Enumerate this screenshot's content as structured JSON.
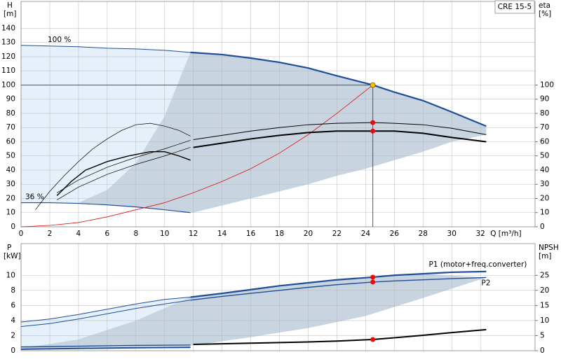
{
  "chart_data": [
    {
      "type": "line",
      "product": "CRE 15-5",
      "y_label": "H",
      "y_unit": "[m]",
      "y2_label": "eta",
      "y2_unit": "[%]",
      "x_label": "Q [m³/h]",
      "xlim": [
        0,
        35.8
      ],
      "xticks": [
        0,
        2,
        4,
        6,
        8,
        10,
        12,
        14,
        16,
        18,
        20,
        22,
        24,
        26,
        28,
        30,
        32
      ],
      "ylim": [
        0,
        159
      ],
      "yticks": [
        0,
        10,
        20,
        30,
        40,
        50,
        60,
        70,
        80,
        90,
        100,
        110,
        120,
        130,
        140
      ],
      "y2lim": [
        0,
        159
      ],
      "y2ticks": [
        0,
        10,
        20,
        30,
        40,
        50,
        60,
        70,
        80,
        90,
        100
      ],
      "grid": true,
      "crosshair": {
        "x": 24.5,
        "y": 100
      },
      "regions": [
        {
          "color": "#e6f0fa",
          "x": [
            0,
            2,
            4,
            6,
            8,
            10,
            11.8,
            11.8,
            10,
            8,
            6,
            4,
            2,
            0
          ],
          "values": [
            128,
            127.5,
            127,
            126,
            125.5,
            124.5,
            123,
            10,
            12,
            14,
            15.5,
            16.5,
            17,
            17
          ]
        },
        {
          "color": "#c8d5e1",
          "x": [
            4,
            6,
            8,
            10,
            11.8,
            14,
            16,
            18,
            20,
            22,
            24.5,
            26,
            28,
            30,
            32.4,
            32.4,
            30,
            28,
            26,
            24,
            22,
            20,
            18,
            16,
            14,
            12,
            10,
            8,
            6
          ],
          "values": [
            17,
            26,
            45,
            78,
            123,
            121.5,
            119,
            116,
            112,
            106.5,
            100,
            95,
            89,
            81,
            71,
            65,
            60,
            53,
            47,
            41,
            36,
            30,
            25,
            20,
            15,
            10,
            12,
            14,
            16
          ]
        }
      ],
      "series": [
        {
          "label": "100 %",
          "label_at": "start",
          "style": "line",
          "color": "#1f4e96",
          "width": 1,
          "x": [
            0,
            2,
            4,
            6,
            8,
            10,
            11.8
          ],
          "values": [
            128,
            127.5,
            127,
            126,
            125.5,
            124.5,
            123
          ]
        },
        {
          "style": "line",
          "color": "#1f4e96",
          "width": 2.2,
          "x": [
            11.8,
            14,
            16,
            18,
            20,
            22,
            24.5,
            26,
            28,
            30,
            32.4
          ],
          "values": [
            123,
            121.5,
            119,
            116,
            112,
            106.5,
            100,
            95,
            89,
            81,
            71
          ]
        },
        {
          "label": "36 %",
          "label_at": "start",
          "style": "line",
          "color": "#1f4e96",
          "width": 1.2,
          "x": [
            0,
            2,
            4,
            6,
            8,
            10,
            11.8
          ],
          "values": [
            17,
            17,
            16.5,
            15.5,
            14,
            12,
            10
          ]
        },
        {
          "style": "line",
          "color": "#e01010",
          "width": 0.8,
          "x": [
            0,
            2,
            4,
            6,
            8,
            10,
            12,
            14,
            16,
            18,
            20,
            22,
            24.5
          ],
          "values": [
            0,
            1,
            3,
            7,
            12,
            17,
            24,
            32,
            41,
            52,
            65,
            80,
            100
          ]
        },
        {
          "axis": "y2",
          "style": "line",
          "color": "#000000",
          "width": 1,
          "x": [
            12,
            14,
            16,
            18,
            20,
            22,
            24.5,
            26,
            28,
            30,
            32.4
          ],
          "values": [
            61.5,
            64.5,
            67.5,
            70,
            72,
            73,
            73.5,
            73,
            72,
            69.5,
            65
          ]
        },
        {
          "axis": "y2",
          "style": "line",
          "color": "#000000",
          "width": 2,
          "x": [
            12,
            14,
            16,
            18,
            20,
            22,
            24.5,
            26,
            28,
            30,
            32.4
          ],
          "values": [
            56,
            59,
            62,
            64.5,
            66.5,
            67.5,
            67.5,
            67.5,
            66,
            63,
            60
          ]
        },
        {
          "axis": "y2",
          "style": "line",
          "color": "#000000",
          "width": 0.7,
          "x": [
            1,
            2,
            3,
            4,
            5,
            6,
            7,
            8,
            9,
            10,
            11,
            11.8
          ],
          "values": [
            12,
            25,
            36,
            46,
            55,
            62,
            68,
            72,
            73,
            71,
            68,
            64
          ]
        },
        {
          "axis": "y2",
          "style": "line",
          "color": "#000000",
          "width": 1.4,
          "x": [
            2.5,
            3.5,
            4.5,
            6,
            7.5,
            9,
            10,
            11,
            11.8
          ],
          "values": [
            22,
            32,
            40,
            46,
            50,
            53,
            53,
            50,
            47
          ]
        },
        {
          "axis": "y2",
          "style": "line",
          "color": "#000000",
          "width": 0.7,
          "x": [
            2.5,
            4,
            6,
            8,
            10,
            11.8
          ],
          "values": [
            19,
            28,
            37,
            44,
            50,
            56
          ]
        },
        {
          "axis": "y2",
          "style": "line",
          "color": "#000000",
          "width": 0.7,
          "x": [
            2.5,
            4,
            6,
            8,
            10,
            11.8
          ],
          "values": [
            24,
            33,
            42,
            49,
            55,
            61
          ]
        },
        {
          "style": "points",
          "colors": [
            "#f5c400",
            "#e01010",
            "#e01010"
          ],
          "x": [
            24.5,
            24.5,
            24.5
          ],
          "values": [
            100,
            73.5,
            67.5
          ]
        }
      ]
    },
    {
      "type": "line",
      "sharex": true,
      "y_label": "P",
      "y_unit": "[kW]",
      "y2_label": "NPSH",
      "y2_unit": "[m]",
      "ylim": [
        0,
        14.2
      ],
      "yticks": [
        0,
        2,
        4,
        6,
        8,
        10
      ],
      "y2lim": [
        0,
        35.5
      ],
      "y2ticks": [
        0,
        5,
        10,
        15,
        20,
        25
      ],
      "grid": true,
      "regions": [
        {
          "color": "#e6f0fa",
          "x": [
            0,
            2,
            4,
            6,
            8,
            10,
            11.8,
            11.8,
            0
          ],
          "values": [
            3.8,
            4.2,
            4.8,
            5.5,
            6.2,
            6.8,
            7.1,
            0.3,
            0.3
          ]
        },
        {
          "color": "#c8d5e1",
          "x": [
            0,
            4,
            8,
            11.8,
            16,
            20,
            24.5,
            28,
            32.4,
            28,
            24,
            20,
            16,
            12,
            6
          ],
          "values": [
            0.3,
            1.5,
            4,
            7.1,
            8.1,
            9,
            9.75,
            10.2,
            9.7,
            7,
            4.6,
            3,
            1.8,
            0.7,
            0.5
          ]
        }
      ],
      "series": [
        {
          "style": "line",
          "color": "#1f4e96",
          "width": 1,
          "x": [
            0,
            2,
            4,
            6,
            8,
            10,
            11.8
          ],
          "values": [
            3.8,
            4.2,
            4.8,
            5.5,
            6.2,
            6.8,
            7.1
          ]
        },
        {
          "label": "P1 (motor+freq.converter)",
          "label_at": "end",
          "style": "line",
          "color": "#1f4e96",
          "width": 2.2,
          "x": [
            11.8,
            14,
            16,
            18,
            20,
            22,
            24.5,
            26,
            28,
            30,
            32.4
          ],
          "values": [
            7.1,
            7.6,
            8.1,
            8.6,
            9,
            9.4,
            9.75,
            10,
            10.2,
            10.4,
            10.5
          ]
        },
        {
          "style": "line",
          "color": "#1f4e96",
          "width": 1,
          "x": [
            0,
            2,
            4,
            6,
            8,
            10,
            11.8
          ],
          "values": [
            3.2,
            3.6,
            4.2,
            4.9,
            5.6,
            6.2,
            6.7
          ]
        },
        {
          "label": "P2",
          "label_at": "end",
          "style": "line",
          "color": "#1f4e96",
          "width": 1.4,
          "x": [
            11.8,
            14,
            16,
            18,
            20,
            22,
            24.5,
            26,
            28,
            30,
            32.4
          ],
          "values": [
            6.7,
            7.2,
            7.6,
            8,
            8.4,
            8.75,
            9.1,
            9.25,
            9.4,
            9.55,
            9.7
          ]
        },
        {
          "style": "line",
          "color": "#1f4e96",
          "width": 2,
          "x": [
            0,
            4,
            8,
            11.8
          ],
          "values": [
            0.2,
            0.3,
            0.4,
            0.45
          ]
        },
        {
          "style": "line",
          "color": "#1f4e96",
          "width": 1.4,
          "x": [
            0,
            4,
            8,
            11.8
          ],
          "values": [
            0.5,
            0.6,
            0.7,
            0.75
          ]
        },
        {
          "axis": "y2",
          "style": "line",
          "color": "#000000",
          "width": 2,
          "x": [
            12,
            16,
            20,
            22,
            24.5,
            26,
            28,
            30,
            32.4
          ],
          "values": [
            2.1,
            2.5,
            2.9,
            3.2,
            3.7,
            4.3,
            5.1,
            6,
            7
          ]
        },
        {
          "style": "points",
          "colors": [
            "#e01010",
            "#e01010"
          ],
          "x": [
            24.5,
            24.5
          ],
          "values": [
            9.75,
            9.1
          ]
        },
        {
          "axis": "y2",
          "style": "points",
          "colors": [
            "#e01010"
          ],
          "x": [
            24.5
          ],
          "values": [
            3.7
          ]
        }
      ]
    }
  ]
}
